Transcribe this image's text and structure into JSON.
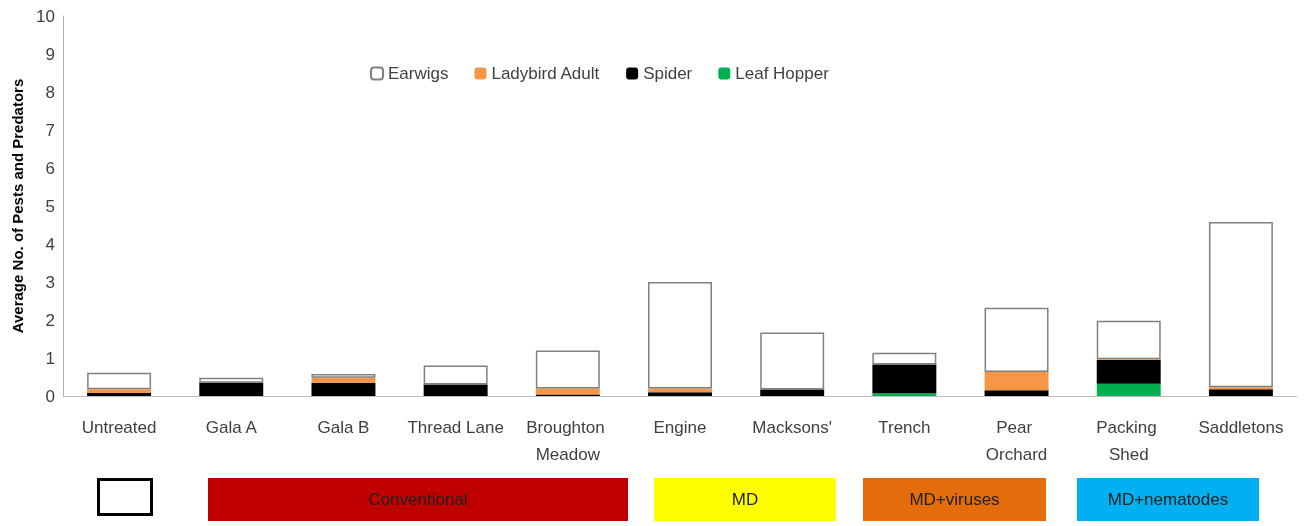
{
  "chart_data": {
    "type": "bar",
    "stacked": true,
    "ylabel": "Average No. of Pests and Predators",
    "categories": [
      "Untreated",
      "Gala A",
      "Gala B",
      "Thread Lane",
      "Broughton Meadow",
      "Engine",
      "Macksons'",
      "Trench",
      "Pear Orchard",
      "Packing Shed",
      "Saddletons"
    ],
    "series": [
      {
        "name": "Leaf Hopper",
        "color": "#00b050",
        "values": [
          0,
          0,
          0,
          0,
          0,
          0,
          0,
          0.07,
          0,
          0.32,
          0
        ]
      },
      {
        "name": "Spider",
        "color": "#000000",
        "values": [
          0.08,
          0.35,
          0.35,
          0.3,
          0.04,
          0.1,
          0.17,
          0.76,
          0.15,
          0.63,
          0.18
        ]
      },
      {
        "name": "Ladybird Adult",
        "color": "#f79646",
        "values": [
          0.1,
          0,
          0.13,
          0,
          0.16,
          0.1,
          null,
          null,
          0.48,
          0.02,
          0.05
        ]
      },
      {
        "name": "Earwigs",
        "color": "#ffffff",
        "values": [
          0.43,
          0.13,
          0.1,
          0.5,
          1.0,
          2.8,
          1.5,
          0.31,
          1.69,
          1.01,
          4.35
        ]
      }
    ],
    "ylim": [
      0,
      10
    ],
    "yticks": [
      0,
      1,
      2,
      3,
      4,
      5,
      6,
      7,
      8,
      9,
      10
    ],
    "grid": false,
    "legend": "top",
    "annotations": [
      "Conventional",
      "MD",
      "MD+viruses",
      "MD+nematodes"
    ]
  }
}
